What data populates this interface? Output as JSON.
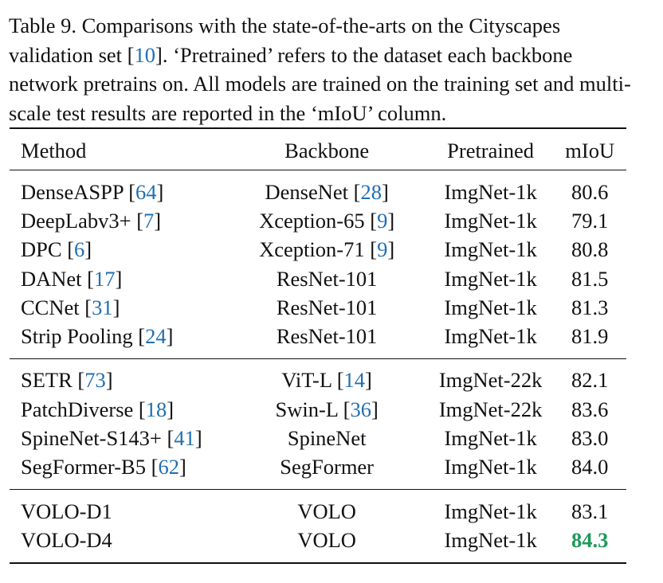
{
  "caption": {
    "prefix": "Table 9. Comparisons with the state-of-the-arts on the Cityscapes validation set [",
    "ref": "10",
    "suffix": "]. ‘Pretrained’ refers to the dataset each backbone network pretrains on. All models are trained on the training set and multi-scale test results are reported in the ‘mIoU’ column."
  },
  "table": {
    "headers": [
      "Method",
      "Backbone",
      "Pretrained",
      "mIoU"
    ],
    "groups": [
      [
        {
          "method": "DenseASPP",
          "method_ref": "64",
          "backbone": "DenseNet",
          "backbone_ref": "28",
          "pretrained": "ImgNet-1k",
          "miou": "80.6"
        },
        {
          "method": "DeepLabv3+",
          "method_ref": "7",
          "backbone": "Xception-65",
          "backbone_ref": "9",
          "pretrained": "ImgNet-1k",
          "miou": "79.1"
        },
        {
          "method": "DPC",
          "method_ref": "6",
          "backbone": "Xception-71",
          "backbone_ref": "9",
          "pretrained": "ImgNet-1k",
          "miou": "80.8"
        },
        {
          "method": "DANet",
          "method_ref": "17",
          "backbone": "ResNet-101",
          "backbone_ref": "",
          "pretrained": "ImgNet-1k",
          "miou": "81.5"
        },
        {
          "method": "CCNet",
          "method_ref": "31",
          "backbone": "ResNet-101",
          "backbone_ref": "",
          "pretrained": "ImgNet-1k",
          "miou": "81.3"
        },
        {
          "method": "Strip Pooling",
          "method_ref": "24",
          "backbone": "ResNet-101",
          "backbone_ref": "",
          "pretrained": "ImgNet-1k",
          "miou": "81.9"
        }
      ],
      [
        {
          "method": "SETR",
          "method_ref": "73",
          "backbone": "ViT-L",
          "backbone_ref": "14",
          "pretrained": "ImgNet-22k",
          "miou": "82.1"
        },
        {
          "method": "PatchDiverse",
          "method_ref": "18",
          "backbone": "Swin-L",
          "backbone_ref": "36",
          "pretrained": "ImgNet-22k",
          "miou": "83.6"
        },
        {
          "method": "SpineNet-S143+",
          "method_ref": "41",
          "backbone": "SpineNet",
          "backbone_ref": "",
          "pretrained": "ImgNet-1k",
          "miou": "83.0"
        },
        {
          "method": "SegFormer-B5",
          "method_ref": "62",
          "backbone": "SegFormer",
          "backbone_ref": "",
          "pretrained": "ImgNet-1k",
          "miou": "84.0"
        }
      ],
      [
        {
          "method": "VOLO-D1",
          "method_ref": "",
          "backbone": "VOLO",
          "backbone_ref": "",
          "pretrained": "ImgNet-1k",
          "miou": "83.1"
        },
        {
          "method": "VOLO-D4",
          "method_ref": "",
          "backbone": "VOLO",
          "backbone_ref": "",
          "pretrained": "ImgNet-1k",
          "miou": "84.3",
          "best": true
        }
      ]
    ]
  },
  "colors": {
    "citation": "#1f6fb2",
    "best_result": "#1e9a58"
  }
}
